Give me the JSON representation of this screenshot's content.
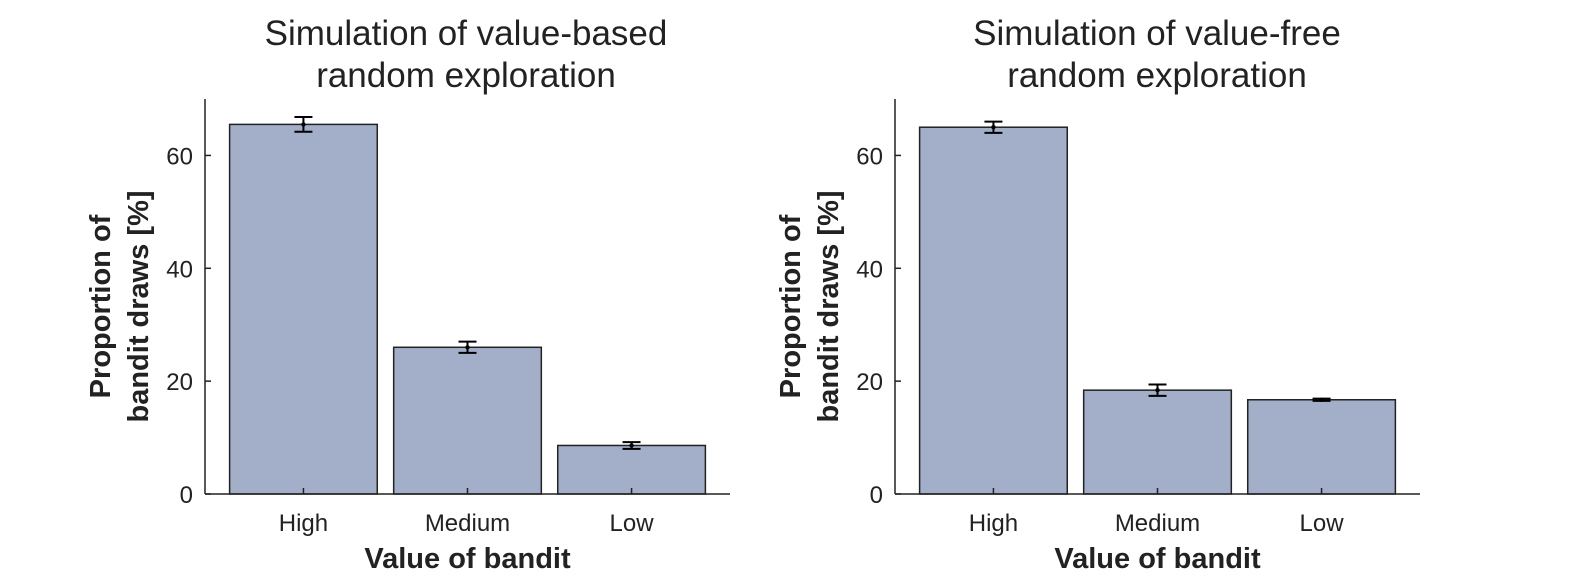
{
  "chart_data": [
    {
      "type": "bar",
      "title": [
        "Simulation of value-based",
        "random exploration"
      ],
      "xlabel": "Value of bandit",
      "ylabel": [
        "Proportion of",
        "bandit draws [%]"
      ],
      "categories": [
        "High",
        "Medium",
        "Low"
      ],
      "values": [
        65.5,
        26.0,
        8.6
      ],
      "errors": [
        1.3,
        1.0,
        0.6
      ],
      "ylim": [
        0,
        70
      ],
      "yticks": [
        0,
        20,
        40,
        60
      ],
      "bar_color": "#a3afc8",
      "grid": false
    },
    {
      "type": "bar",
      "title": [
        "Simulation of value-free",
        "random exploration"
      ],
      "xlabel": "Value of bandit",
      "ylabel": [
        "Proportion of",
        "bandit draws [%]"
      ],
      "categories": [
        "High",
        "Medium",
        "Low"
      ],
      "values": [
        65.0,
        18.4,
        16.7
      ],
      "errors": [
        1.0,
        1.0,
        0.2
      ],
      "ylim": [
        0,
        70
      ],
      "yticks": [
        0,
        20,
        40,
        60
      ],
      "bar_color": "#a3afc8",
      "grid": false
    }
  ]
}
